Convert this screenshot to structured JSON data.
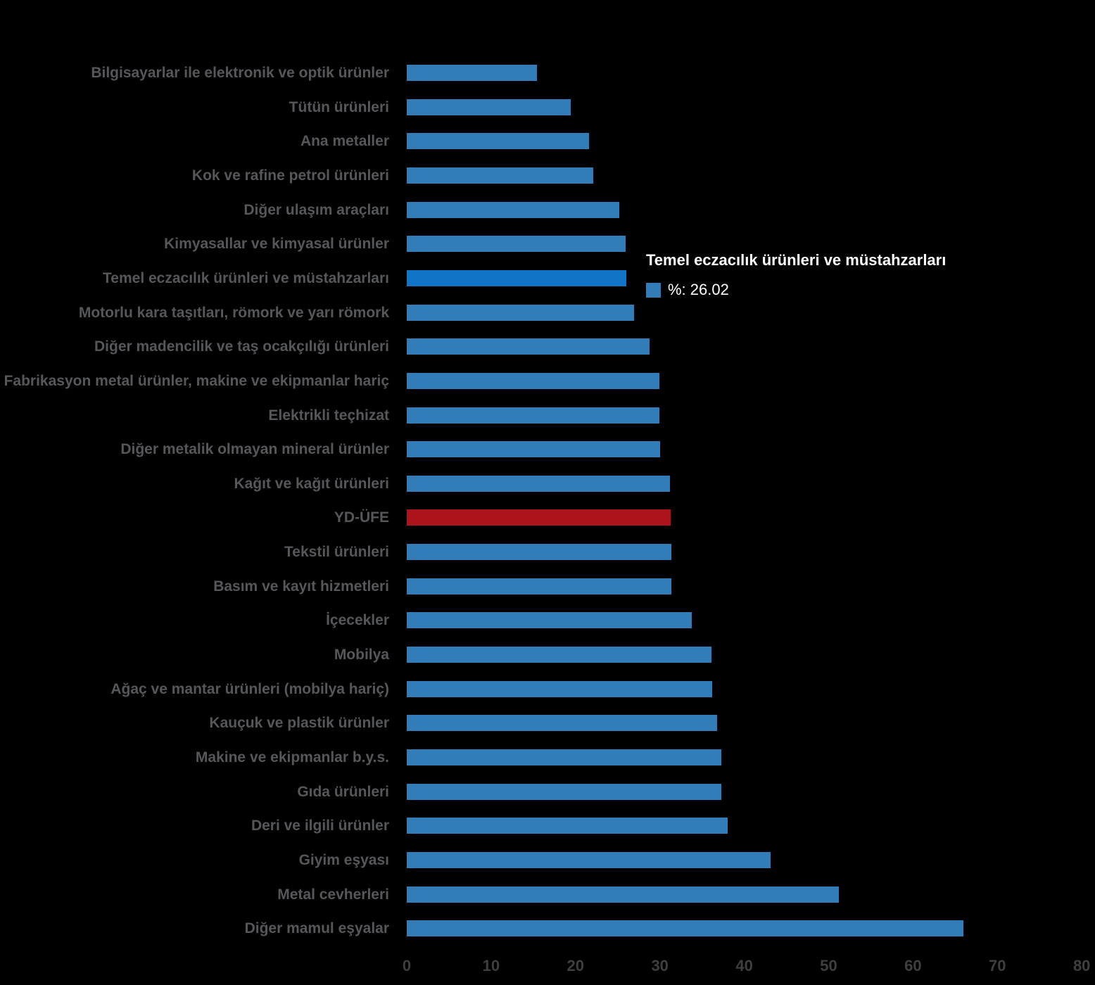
{
  "chart_data": {
    "type": "bar",
    "orientation": "horizontal",
    "title": "",
    "xlabel": "",
    "ylabel": "",
    "xlim": [
      0,
      80
    ],
    "x_ticks": [
      0,
      10,
      20,
      30,
      40,
      50,
      60,
      70,
      80
    ],
    "grid": false,
    "legend_position": "none",
    "categories": [
      "Bilgisayarlar ile elektronik ve optik ürünler",
      "Tütün ürünleri",
      "Ana metaller",
      "Kok ve rafine petrol ürünleri",
      "Diğer ulaşım araçları",
      "Kimyasallar ve kimyasal ürünler",
      "Temel eczacılık ürünleri ve müstahzarları",
      "Motorlu kara taşıtları, römork ve yarı römork",
      "Diğer madencilik ve taş ocakçılığı ürünleri",
      "Fabrikasyon metal ürünler, makine ve ekipmanlar hariç",
      "Elektrikli teçhizat",
      "Diğer metalik olmayan mineral ürünler",
      "Kağıt ve kağıt ürünleri",
      "YD-ÜFE",
      "Tekstil ürünleri",
      "Basım ve kayıt hizmetleri",
      "İçecekler",
      "Mobilya",
      "Ağaç ve mantar ürünleri (mobilya hariç)",
      "Kauçuk ve plastik ürünler",
      "Makine ve ekipmanlar b.y.s.",
      "Gıda ürünleri",
      "Deri ve ilgili ürünler",
      "Giyim eşyası",
      "Metal cevherleri",
      "Diğer mamul eşyalar"
    ],
    "values": [
      15.4,
      19.4,
      21.6,
      22.1,
      25.2,
      25.9,
      26.02,
      26.9,
      28.8,
      29.9,
      29.9,
      30.0,
      31.2,
      31.3,
      31.4,
      31.4,
      33.8,
      36.1,
      36.2,
      36.8,
      37.3,
      37.3,
      38.0,
      43.1,
      51.2,
      66.0
    ],
    "bar_roles": [
      "default",
      "default",
      "default",
      "default",
      "default",
      "default",
      "highlight",
      "default",
      "default",
      "default",
      "default",
      "default",
      "default",
      "reference",
      "default",
      "default",
      "default",
      "default",
      "default",
      "default",
      "default",
      "default",
      "default",
      "default",
      "default",
      "default"
    ],
    "colors": {
      "default": "#327cb8",
      "highlight": "#1174c7",
      "reference": "#ad131b"
    }
  },
  "tooltip": {
    "title": "Temel eczacılık ürünleri ve müstahzarları",
    "swatch_color": "#327cb8",
    "value_text": "%: 26.02"
  }
}
